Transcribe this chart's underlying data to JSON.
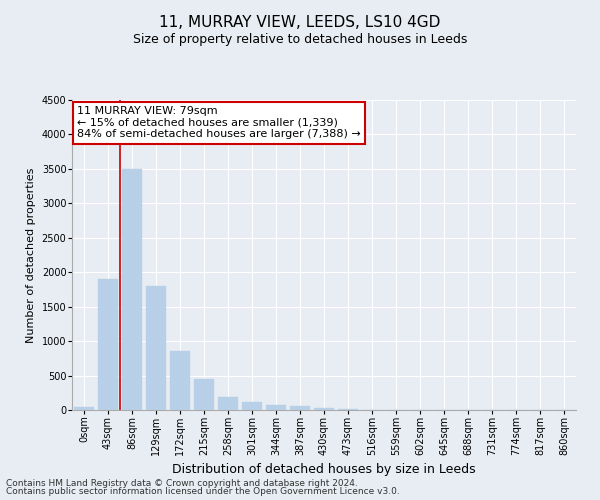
{
  "title1": "11, MURRAY VIEW, LEEDS, LS10 4GD",
  "title2": "Size of property relative to detached houses in Leeds",
  "xlabel": "Distribution of detached houses by size in Leeds",
  "ylabel": "Number of detached properties",
  "categories": [
    "0sqm",
    "43sqm",
    "86sqm",
    "129sqm",
    "172sqm",
    "215sqm",
    "258sqm",
    "301sqm",
    "344sqm",
    "387sqm",
    "430sqm",
    "473sqm",
    "516sqm",
    "559sqm",
    "602sqm",
    "645sqm",
    "688sqm",
    "731sqm",
    "774sqm",
    "817sqm",
    "860sqm"
  ],
  "values": [
    50,
    1900,
    3500,
    1800,
    850,
    450,
    190,
    110,
    70,
    55,
    30,
    10,
    5,
    3,
    2,
    1,
    1,
    0,
    0,
    0,
    0
  ],
  "bar_color": "#b8cfe8",
  "bar_edge_color": "#b8cfe8",
  "vline_x_index": 2,
  "vline_color": "#cc0000",
  "annotation_line1": "11 MURRAY VIEW: 79sqm",
  "annotation_line2": "← 15% of detached houses are smaller (1,339)",
  "annotation_line3": "84% of semi-detached houses are larger (7,388) →",
  "annotation_box_color": "#ffffff",
  "annotation_box_edge": "#cc0000",
  "ylim": [
    0,
    4500
  ],
  "yticks": [
    0,
    500,
    1000,
    1500,
    2000,
    2500,
    3000,
    3500,
    4000,
    4500
  ],
  "bg_color": "#e8edf3",
  "plot_bg_color": "#e8edf3",
  "grid_color": "#ffffff",
  "footer1": "Contains HM Land Registry data © Crown copyright and database right 2024.",
  "footer2": "Contains public sector information licensed under the Open Government Licence v3.0.",
  "title1_fontsize": 11,
  "title2_fontsize": 9,
  "xlabel_fontsize": 9,
  "ylabel_fontsize": 8,
  "tick_fontsize": 7,
  "annotation_fontsize": 8,
  "footer_fontsize": 6.5
}
